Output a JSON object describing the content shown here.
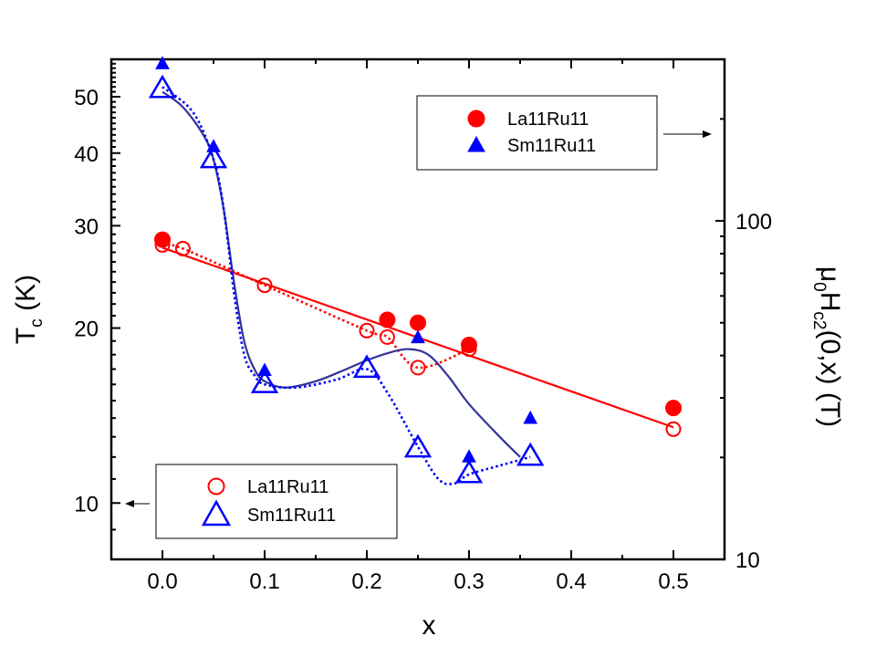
{
  "chart_data": {
    "type": "scatter",
    "xlabel": "x",
    "ylabel_left": {
      "main": "T",
      "sub": "c",
      "unit": " (K)"
    },
    "ylabel_right": {
      "mu": "μ",
      "mu_sub": "0",
      "H": "H",
      "H_sub": "c2",
      "rest": "(0,x) (T)"
    },
    "xlim": [
      -0.05,
      0.55
    ],
    "ylim_left": [
      8,
      58
    ],
    "ylim_right": [
      10,
      300
    ],
    "yscale": "log",
    "grid": false,
    "x_ticks": [
      0.0,
      0.1,
      0.2,
      0.3,
      0.4,
      0.5
    ],
    "x_tick_labels": [
      "0.0",
      "0.1",
      "0.2",
      "0.3",
      "0.4",
      "0.5"
    ],
    "y_left_ticks": [
      10,
      20,
      30,
      40,
      50
    ],
    "y_left_tick_labels": [
      "10",
      "20",
      "30",
      "40",
      "50"
    ],
    "y_right_ticks": [
      10,
      100
    ],
    "y_right_tick_labels": [
      "10",
      "100"
    ],
    "legend_right": {
      "placement": "top-right",
      "entries": [
        {
          "label": "La11Ru11",
          "marker": "filled-circle",
          "color": "#ff0000"
        },
        {
          "label": "Sm11Ru11",
          "marker": "filled-triangle",
          "color": "#0000ff"
        }
      ]
    },
    "legend_left": {
      "placement": "bottom-left",
      "entries": [
        {
          "label": "La11Ru11",
          "marker": "open-circle",
          "color": "#ff0000"
        },
        {
          "label": "Sm11Ru11",
          "marker": "open-triangle",
          "color": "#0000ff"
        }
      ]
    },
    "series": [
      {
        "legend": "La11Ru11",
        "axis": "left",
        "marker": "open-circle",
        "color": "#ff0000",
        "x": [
          0.0,
          0.02,
          0.1,
          0.2,
          0.22,
          0.25,
          0.3,
          0.5
        ],
        "y": [
          27.8,
          27.4,
          23.7,
          19.8,
          19.3,
          17.1,
          18.4,
          13.4
        ]
      },
      {
        "legend": "La11Ru11",
        "axis": "right",
        "marker": "filled-circle",
        "color": "#ff0000",
        "x": [
          0.0,
          0.22,
          0.25,
          0.3,
          0.5
        ],
        "y": [
          88,
          51,
          50,
          43,
          28
        ]
      },
      {
        "legend": "Sm11Ru11",
        "axis": "left",
        "marker": "open-triangle",
        "color": "#0000ff",
        "x": [
          0.0,
          0.05,
          0.1,
          0.2,
          0.25,
          0.3,
          0.36
        ],
        "y": [
          51.5,
          39.0,
          16.0,
          17.0,
          12.4,
          11.2,
          12.0
        ]
      },
      {
        "legend": "Sm11Ru11",
        "axis": "right",
        "marker": "filled-triangle",
        "color": "#0000ff",
        "x": [
          0.0,
          0.05,
          0.1,
          0.25,
          0.3,
          0.36
        ],
        "y": [
          290,
          165,
          36,
          45,
          20,
          26
        ]
      }
    ],
    "lines": [
      {
        "kind": "solid",
        "color": "#ff0000",
        "axis": "left",
        "x": [
          0.0,
          0.5
        ],
        "y": [
          27.5,
          13.5
        ]
      },
      {
        "kind": "dotted",
        "color": "#ff0000",
        "axis": "left",
        "x": [
          0.0,
          0.02,
          0.1,
          0.2,
          0.22,
          0.25,
          0.3
        ],
        "y": [
          27.8,
          27.4,
          23.7,
          19.8,
          19.3,
          17.1,
          18.4
        ]
      },
      {
        "kind": "solid",
        "color": "#33339a",
        "axis": "left",
        "x": [
          0.0,
          0.02,
          0.04,
          0.05,
          0.06,
          0.07,
          0.08,
          0.09,
          0.1,
          0.12,
          0.15,
          0.18,
          0.2,
          0.22,
          0.24,
          0.26,
          0.28,
          0.3,
          0.33,
          0.35
        ],
        "y": [
          51.0,
          48.0,
          43.0,
          39.0,
          32.0,
          24.0,
          19.0,
          17.0,
          16.2,
          15.8,
          16.2,
          17.0,
          17.6,
          18.1,
          18.4,
          18.0,
          16.5,
          14.8,
          13.0,
          12.0
        ]
      },
      {
        "kind": "dotted",
        "color": "#0000ff",
        "axis": "left",
        "x": [
          0.0,
          0.03,
          0.05,
          0.06,
          0.07,
          0.08,
          0.09,
          0.1,
          0.13,
          0.17,
          0.2,
          0.22,
          0.25,
          0.27,
          0.285,
          0.3,
          0.33,
          0.36
        ],
        "y": [
          52.0,
          47.0,
          39.0,
          32.0,
          23.0,
          18.0,
          16.6,
          16.0,
          15.8,
          16.3,
          17.0,
          15.5,
          12.5,
          11.0,
          10.8,
          11.2,
          11.6,
          12.0
        ]
      }
    ]
  }
}
